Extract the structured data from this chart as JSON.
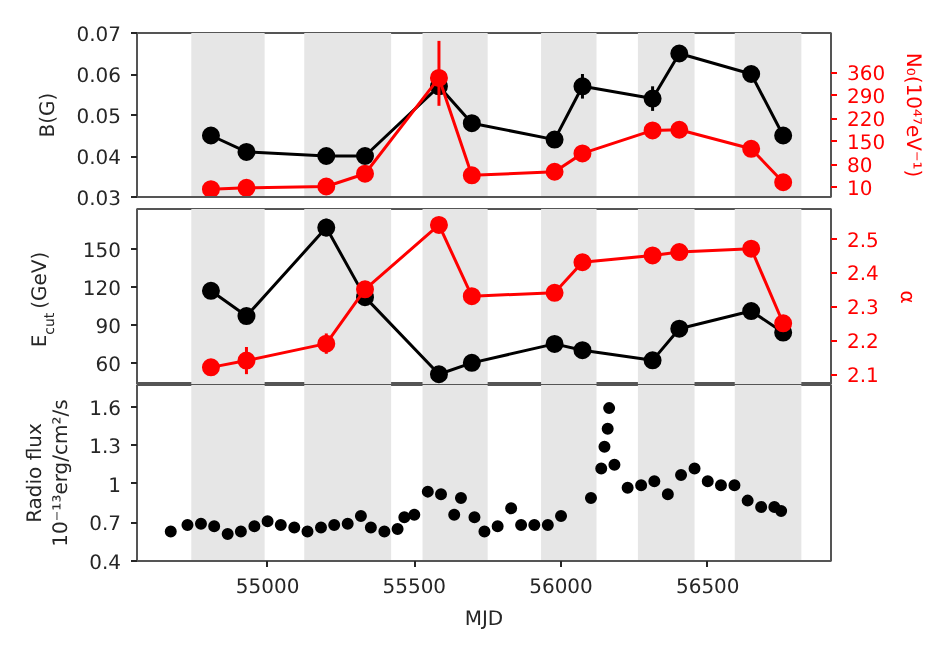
{
  "chart_data": [
    {
      "type": "line",
      "marker": "circle",
      "ylabel": "B(G)",
      "y2label": "N₀(10⁴⁷eV⁻¹)",
      "tick_labels": "y",
      "grid": false,
      "x": [
        54807,
        54928,
        55200,
        55332,
        55584,
        55696,
        55978,
        56073,
        56312,
        56403,
        56648,
        56757
      ],
      "xlim": [
        54555,
        56920
      ],
      "ylim": [
        0.03,
        0.07
      ],
      "yticks": [
        0.03,
        0.04,
        0.05,
        0.06,
        0.07
      ],
      "y2lim": [
        -20,
        480
      ],
      "y2ticks": [
        10,
        80,
        150,
        220,
        290,
        360
      ],
      "series": [
        {
          "color": "#000000",
          "values": [
            0.045,
            0.041,
            0.04,
            0.04,
            0.057,
            0.048,
            0.044,
            0.057,
            0.054,
            0.065,
            0.06,
            0.045
          ],
          "errors": [
            null,
            null,
            null,
            null,
            null,
            null,
            null,
            0.003,
            0.003,
            0.002,
            null,
            null
          ]
        },
        {
          "color": "#ff0000",
          "axis": "y2",
          "values": [
            4,
            8,
            12,
            51,
            343,
            46,
            57,
            113,
            183,
            185,
            127,
            25
          ],
          "errors": [
            null,
            null,
            null,
            null,
            [
              258,
              456
            ],
            null,
            null,
            15,
            null,
            null,
            null,
            null
          ]
        }
      ],
      "bands": [
        {
          "axis": "x",
          "from": 54740,
          "to": 54990,
          "color": "#e6e6e6"
        },
        {
          "axis": "x",
          "from": 55125,
          "to": 55421,
          "color": "#e6e6e6"
        },
        {
          "axis": "x",
          "from": 55528,
          "to": 55750,
          "color": "#e6e6e6"
        },
        {
          "axis": "x",
          "from": 55932,
          "to": 56121,
          "color": "#e6e6e6"
        },
        {
          "axis": "x",
          "from": 56262,
          "to": 56455,
          "color": "#e6e6e6"
        },
        {
          "axis": "x",
          "from": 56592,
          "to": 56819,
          "color": "#e6e6e6"
        }
      ]
    },
    {
      "type": "line",
      "marker": "circle",
      "ylabel": "E$_{cut}$(GeV)",
      "y2label": "α",
      "tick_labels": "y",
      "grid": false,
      "x": [
        54807,
        54928,
        55200,
        55332,
        55584,
        55696,
        55978,
        56073,
        56312,
        56403,
        56648,
        56757
      ],
      "xlim": [
        54555,
        56920
      ],
      "ylim": [
        42.5,
        181.7
      ],
      "yticks": [
        60,
        90,
        120,
        150
      ],
      "y2lim": [
        2.068,
        2.587
      ],
      "y2ticks": [
        2.1,
        2.2,
        2.3,
        2.4,
        2.5
      ],
      "series": [
        {
          "color": "#000000",
          "values": [
            117,
            97,
            167,
            112,
            51,
            60,
            75,
            70,
            62,
            87,
            101,
            84
          ],
          "errors": [
            null,
            null,
            7,
            null,
            null,
            null,
            null,
            null,
            null,
            null,
            null,
            null
          ]
        },
        {
          "color": "#ff0000",
          "axis": "y2",
          "values": [
            2.12,
            2.14,
            2.19,
            2.35,
            2.54,
            2.33,
            2.34,
            2.43,
            2.45,
            2.46,
            2.47,
            2.25
          ],
          "errors": [
            null,
            0.04,
            0.03,
            null,
            null,
            null,
            null,
            null,
            null,
            null,
            null,
            null
          ]
        }
      ],
      "bands": [
        {
          "axis": "x",
          "from": 54740,
          "to": 54990,
          "color": "#e6e6e6"
        },
        {
          "axis": "x",
          "from": 55125,
          "to": 55421,
          "color": "#e6e6e6"
        },
        {
          "axis": "x",
          "from": 55528,
          "to": 55750,
          "color": "#e6e6e6"
        },
        {
          "axis": "x",
          "from": 55932,
          "to": 56121,
          "color": "#e6e6e6"
        },
        {
          "axis": "x",
          "from": 56262,
          "to": 56455,
          "color": "#e6e6e6"
        },
        {
          "axis": "x",
          "from": 56592,
          "to": 56819,
          "color": "#e6e6e6"
        }
      ]
    },
    {
      "type": "scatter",
      "marker": "circle",
      "xlabel": "MJD",
      "ylabel": "Radio flux\n10⁻¹³erg/cm²/s",
      "grid": false,
      "x": [
        54670,
        54727,
        54773,
        54818,
        54864,
        54909,
        54955,
        55000,
        55045,
        55091,
        55136,
        55182,
        55227,
        55273,
        55318,
        55352,
        55398,
        55443,
        55466,
        55500,
        55546,
        55591,
        55636,
        55659,
        55705,
        55739,
        55784,
        55830,
        55864,
        55909,
        55955,
        56000,
        56102,
        56137,
        56148,
        56159,
        56164,
        56182,
        56227,
        56273,
        56318,
        56364,
        56409,
        56455,
        56500,
        56545,
        56591,
        56636,
        56682,
        56727,
        56750
      ],
      "xlim": [
        54555,
        56920
      ],
      "xticks": [
        55000,
        55500,
        56000,
        56500
      ],
      "ylim": [
        0.4,
        1.77
      ],
      "yticks": [
        0.4,
        0.7,
        1.0,
        1.3,
        1.6
      ],
      "series": [
        {
          "color": "#000000",
          "values": [
            0.63,
            0.68,
            0.69,
            0.67,
            0.61,
            0.63,
            0.67,
            0.71,
            0.68,
            0.66,
            0.63,
            0.66,
            0.68,
            0.69,
            0.75,
            0.66,
            0.63,
            0.65,
            0.74,
            0.76,
            0.94,
            0.92,
            0.76,
            0.89,
            0.74,
            0.63,
            0.67,
            0.81,
            0.68,
            0.68,
            0.68,
            0.75,
            0.89,
            1.12,
            1.29,
            1.43,
            1.59,
            1.15,
            0.97,
            0.99,
            1.02,
            0.92,
            1.07,
            1.12,
            1.02,
            0.99,
            0.99,
            0.87,
            0.82,
            0.82,
            0.79
          ]
        }
      ],
      "bands": [
        {
          "axis": "x",
          "from": 54740,
          "to": 54990,
          "color": "#e6e6e6"
        },
        {
          "axis": "x",
          "from": 55125,
          "to": 55421,
          "color": "#e6e6e6"
        },
        {
          "axis": "x",
          "from": 55528,
          "to": 55750,
          "color": "#e6e6e6"
        },
        {
          "axis": "x",
          "from": 55932,
          "to": 56121,
          "color": "#e6e6e6"
        },
        {
          "axis": "x",
          "from": 56262,
          "to": 56455,
          "color": "#e6e6e6"
        },
        {
          "axis": "x",
          "from": 56592,
          "to": 56819,
          "color": "#e6e6e6"
        }
      ]
    }
  ]
}
